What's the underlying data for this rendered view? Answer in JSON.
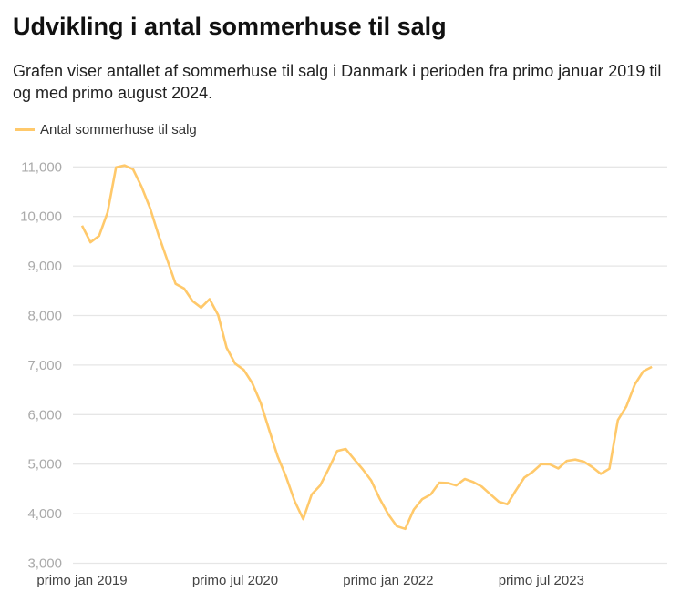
{
  "title": "Udvikling i antal sommerhuse til salg",
  "subtitle": "Grafen viser antallet af sommerhuse til salg i Danmark i perioden fra primo januar 2019 til og med primo august 2024.",
  "chart_data": {
    "type": "line",
    "title": "Udvikling i antal sommerhuse til salg",
    "xlabel": "",
    "ylabel": "",
    "ylim": [
      3000,
      11000
    ],
    "yticks": [
      3000,
      4000,
      5000,
      6000,
      7000,
      8000,
      9000,
      10000,
      11000
    ],
    "ytick_labels": [
      "3,000",
      "4,000",
      "5,000",
      "6,000",
      "7,000",
      "8,000",
      "9,000",
      "10,000",
      "11,000"
    ],
    "xtick_indices": [
      0,
      18,
      36,
      54
    ],
    "xtick_labels": [
      "primo jan 2019",
      "primo jul 2020",
      "primo jan 2022",
      "primo jul 2023"
    ],
    "x_start": "2019-01",
    "x_end": "2024-08",
    "grid": true,
    "legend_position": "top-left",
    "series": [
      {
        "name": "Antal sommerhuse til salg",
        "color": "#ffc96b",
        "values": [
          9815,
          9478,
          9607,
          10080,
          10990,
          11030,
          10950,
          10600,
          10170,
          9620,
          9130,
          8640,
          8545,
          8290,
          8160,
          8330,
          8010,
          7350,
          7030,
          6905,
          6640,
          6240,
          5690,
          5155,
          4740,
          4250,
          3890,
          4387,
          4570,
          4908,
          5264,
          5307,
          5098,
          4896,
          4669,
          4300,
          3988,
          3748,
          3693,
          4080,
          4294,
          4387,
          4626,
          4620,
          4570,
          4700,
          4638,
          4546,
          4393,
          4240,
          4190,
          4466,
          4730,
          4847,
          5000,
          4994,
          4914,
          5067,
          5092,
          5049,
          4939,
          4804,
          4908,
          5890,
          6166,
          6613,
          6877,
          6963
        ]
      }
    ]
  }
}
